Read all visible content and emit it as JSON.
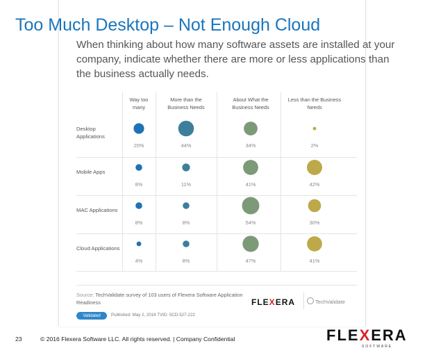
{
  "slide": {
    "title": "Too Much Desktop – Not Enough Cloud",
    "page_number": "23",
    "copyright": "© 2016 Flexera Software LLC. All rights reserved.   |   Company Confidential",
    "logo": {
      "text_before": "FLE",
      "text_x": "X",
      "text_after": "ERA",
      "sub": "SOFTWARE"
    }
  },
  "survey": {
    "question_lines": [
      "When thinking about how many software assets are installed at your",
      "company, indicate whether there are more or less applications than",
      "the business actually needs."
    ],
    "source_label": "Source:",
    "source_text": "TechValidate survey of 103 users of Flexera Software Application Readiness",
    "badge": "Validated",
    "published": "Published: May 2, 2016   TVID: 5CD-527-222",
    "flexera_logo": {
      "text_before": "FLE",
      "text_x": "X",
      "text_after": "ERA"
    },
    "techvalidate_logo": "TechValidate"
  },
  "chart_data": {
    "type": "bubble-matrix",
    "columns": [
      [
        "Way too",
        "many"
      ],
      [
        "More than the",
        "Business Needs"
      ],
      [
        "About What the",
        "Business Needs"
      ],
      [
        "Less than the Business",
        "Needs"
      ]
    ],
    "rows": [
      {
        "label": [
          "Desktop",
          "Applications"
        ],
        "values": [
          20,
          44,
          34,
          2
        ]
      },
      {
        "label": [
          "Mobile Apps"
        ],
        "values": [
          8,
          11,
          41,
          42
        ]
      },
      {
        "label": [
          "MAC Applications"
        ],
        "values": [
          8,
          8,
          54,
          30
        ]
      },
      {
        "label": [
          "Cloud Applications"
        ],
        "values": [
          4,
          8,
          47,
          41
        ]
      }
    ],
    "value_suffix": "%",
    "column_colors": [
      "#1f72b5",
      "#3d7f9b",
      "#7d9a78",
      "#bda94a"
    ]
  }
}
